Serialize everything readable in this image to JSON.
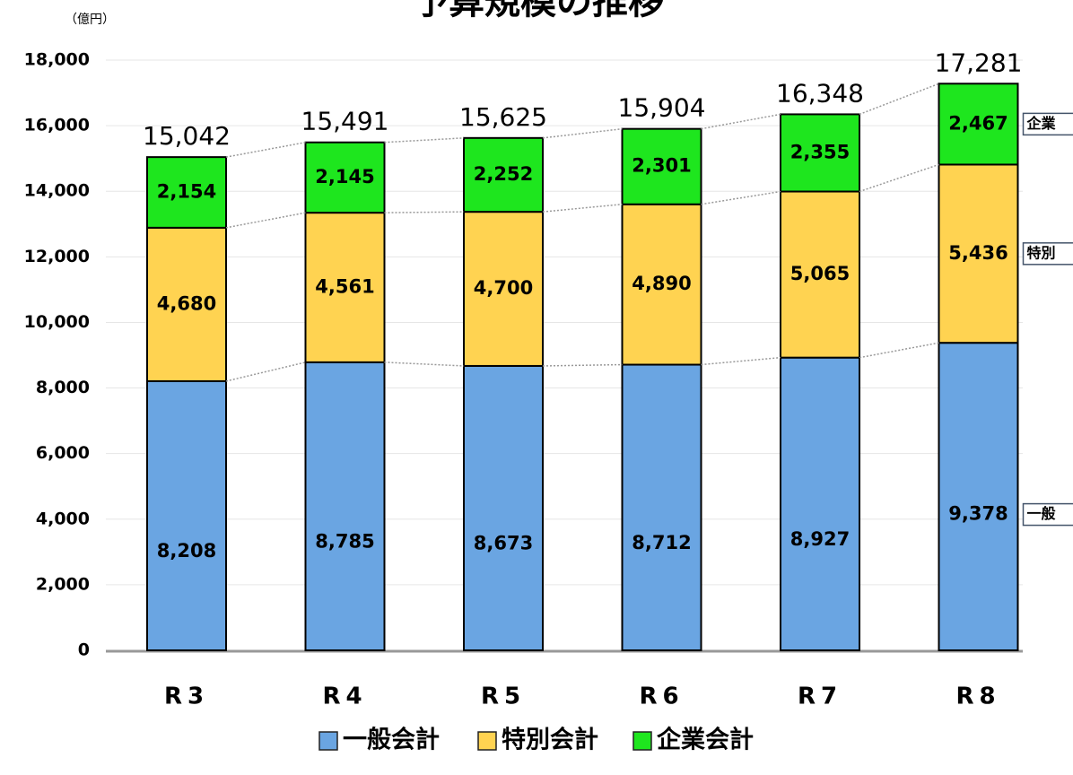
{
  "chart_data": {
    "type": "stacked_bar",
    "title": "予算規模の推移",
    "unit": "（億円）",
    "categories": [
      "R3",
      "R4",
      "R5",
      "R6",
      "R7",
      "R8"
    ],
    "series": [
      {
        "name": "一般会計",
        "tag": "一般",
        "color": "#6aa5e2",
        "values": [
          8208,
          8785,
          8673,
          8712,
          8927,
          9378
        ],
        "value_labels": [
          "8,208",
          "8,785",
          "8,673",
          "8,712",
          "8,927",
          "9,378"
        ]
      },
      {
        "name": "特別会計",
        "tag": "特別",
        "color": "#ffd351",
        "values": [
          4680,
          4561,
          4700,
          4890,
          5065,
          5436
        ],
        "value_labels": [
          "4,680",
          "4,561",
          "4,700",
          "4,890",
          "5,065",
          "5,436"
        ]
      },
      {
        "name": "企業会計",
        "tag": "企業",
        "color": "#1ee61e",
        "values": [
          2154,
          2145,
          2252,
          2301,
          2355,
          2467
        ],
        "value_labels": [
          "2,154",
          "2,145",
          "2,252",
          "2,301",
          "2,355",
          "2,467"
        ]
      }
    ],
    "totals": [
      15042,
      15491,
      15625,
      15904,
      16348,
      17281
    ],
    "total_labels": [
      "15,042",
      "15,491",
      "15,625",
      "15,904",
      "16,348",
      "17,281"
    ],
    "ylim": [
      0,
      18000
    ],
    "yticks": [
      0,
      {
        "value": 2000,
        "label": "2,000"
      },
      {
        "value": 4000,
        "label": "4,000"
      },
      {
        "value": 6000,
        "label": "6,000"
      },
      {
        "value": 8000,
        "label": "8,000"
      },
      {
        "value": 10000,
        "label": "10,000"
      },
      {
        "value": 12000,
        "label": "12,000"
      },
      {
        "value": 14000,
        "label": "14,000"
      },
      {
        "value": 16000,
        "label": "16,000"
      },
      {
        "value": 18000,
        "label": "18,000"
      }
    ],
    "grid": true,
    "legend": "bottom"
  }
}
